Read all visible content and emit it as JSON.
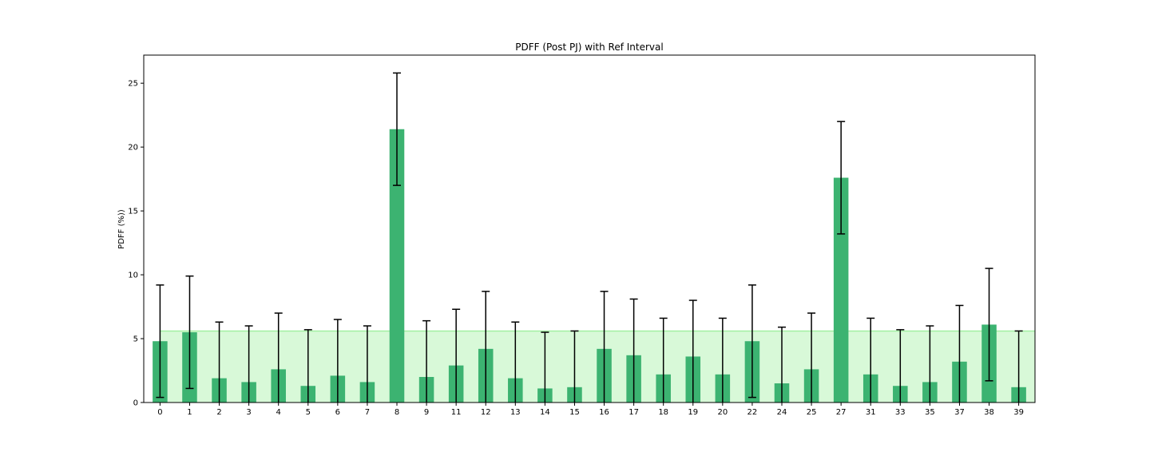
{
  "chart_data": {
    "type": "bar",
    "title": "PDFF (Post PJ) with Ref Interval",
    "xlabel": "",
    "ylabel": "PDFF (%))",
    "ylim": [
      0,
      27.2
    ],
    "yticks": [
      0,
      5,
      10,
      15,
      20,
      25
    ],
    "grid": false,
    "categories": [
      "0",
      "1",
      "2",
      "3",
      "4",
      "5",
      "6",
      "7",
      "8",
      "9",
      "11",
      "12",
      "13",
      "14",
      "15",
      "16",
      "17",
      "18",
      "19",
      "20",
      "22",
      "24",
      "25",
      "27",
      "31",
      "33",
      "35",
      "37",
      "38",
      "39"
    ],
    "values": [
      4.8,
      5.5,
      1.9,
      1.6,
      2.6,
      1.3,
      2.1,
      1.6,
      21.4,
      2.0,
      2.9,
      4.2,
      1.9,
      1.1,
      1.2,
      4.2,
      3.7,
      2.2,
      3.6,
      2.2,
      4.8,
      1.5,
      2.6,
      17.6,
      2.2,
      1.3,
      1.6,
      3.2,
      6.1,
      1.2
    ],
    "error_low": [
      0.4,
      1.1,
      0.0,
      0.0,
      0.0,
      0.0,
      0.0,
      0.0,
      17.0,
      0.0,
      0.0,
      0.0,
      0.0,
      0.0,
      0.0,
      0.0,
      0.0,
      0.0,
      0.0,
      0.0,
      0.4,
      0.0,
      0.0,
      13.2,
      0.0,
      0.0,
      0.0,
      0.0,
      1.7,
      0.0
    ],
    "error_high": [
      9.2,
      9.9,
      6.3,
      6.0,
      7.0,
      5.7,
      6.5,
      6.0,
      25.8,
      6.4,
      7.3,
      8.7,
      6.3,
      5.5,
      5.6,
      8.7,
      8.1,
      6.6,
      8.0,
      6.6,
      9.2,
      5.9,
      7.0,
      22.0,
      6.6,
      5.7,
      6.0,
      7.6,
      10.5,
      5.6
    ],
    "ref_interval": [
      0,
      5.6
    ],
    "bar_color": "#3cb371",
    "ref_color": "#90ee90",
    "error_color": "#000000"
  }
}
